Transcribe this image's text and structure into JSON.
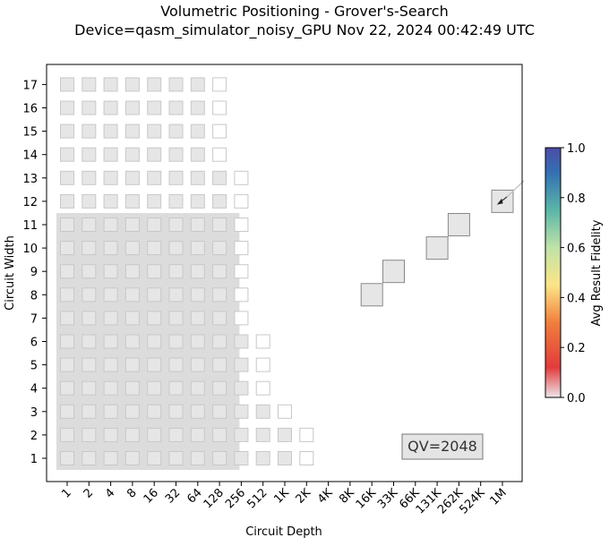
{
  "chart_data": {
    "type": "heatmap",
    "title": "Volumetric Positioning - Grover's-Search",
    "subtitle": "Device=qasm_simulator_noisy_GPU  Nov 22, 2024 00:42:49 UTC",
    "xlabel": "Circuit Depth",
    "ylabel": "Circuit Width",
    "x_ticks": [
      "1",
      "2",
      "4",
      "8",
      "16",
      "32",
      "64",
      "128",
      "256",
      "512",
      "1K",
      "2K",
      "4K",
      "8K",
      "16K",
      "33K",
      "66K",
      "131K",
      "262K",
      "524K",
      "1M"
    ],
    "y_ticks": [
      "1",
      "2",
      "3",
      "4",
      "5",
      "6",
      "7",
      "8",
      "9",
      "10",
      "11",
      "12",
      "13",
      "14",
      "15",
      "16",
      "17"
    ],
    "x_scale": "log2",
    "volume_region": {
      "max_depth_index": 7,
      "max_width": 11,
      "label": ""
    },
    "qv_label": "QV=2048",
    "colorbar": {
      "label": "Avg Result Fidelity",
      "ticks": [
        "0.0",
        "0.2",
        "0.4",
        "0.6",
        "0.8",
        "1.0"
      ],
      "min": 0.0,
      "max": 1.0,
      "colors": [
        "#ede5ea",
        "#e23b3b",
        "#f07f3c",
        "#fce588",
        "#c0e3a8",
        "#5ab6a8",
        "#3470b4",
        "#4b4ca6"
      ]
    },
    "grid_cells": [
      {
        "width": 1,
        "filled_upto": 10,
        "outline_at": 11
      },
      {
        "width": 2,
        "filled_upto": 10,
        "outline_at": 11
      },
      {
        "width": 3,
        "filled_upto": 9,
        "outline_at": 10
      },
      {
        "width": 4,
        "filled_upto": 8,
        "outline_at": 9
      },
      {
        "width": 5,
        "filled_upto": 8,
        "outline_at": 9
      },
      {
        "width": 6,
        "filled_upto": 8,
        "outline_at": 9
      },
      {
        "width": 7,
        "filled_upto": 7,
        "outline_at": 8
      },
      {
        "width": 8,
        "filled_upto": 7,
        "outline_at": 8
      },
      {
        "width": 9,
        "filled_upto": 7,
        "outline_at": 8
      },
      {
        "width": 10,
        "filled_upto": 7,
        "outline_at": 8
      },
      {
        "width": 11,
        "filled_upto": 7,
        "outline_at": 8
      },
      {
        "width": 12,
        "filled_upto": 7,
        "outline_at": 8
      },
      {
        "width": 13,
        "filled_upto": 7,
        "outline_at": 8
      },
      {
        "width": 14,
        "filled_upto": 6,
        "outline_at": 7
      },
      {
        "width": 15,
        "filled_upto": 6,
        "outline_at": 7
      },
      {
        "width": 16,
        "filled_upto": 6,
        "outline_at": 7
      },
      {
        "width": 17,
        "filled_upto": 6,
        "outline_at": 7
      }
    ],
    "result_points": [
      {
        "width": 8,
        "depth": "16K",
        "fidelity": 0.0
      },
      {
        "width": 9,
        "depth": "33K",
        "fidelity": 0.0
      },
      {
        "width": 10,
        "depth": "131K",
        "fidelity": 0.0
      },
      {
        "width": 11,
        "depth": "262K",
        "fidelity": 0.0
      },
      {
        "width": 12,
        "depth": "1M",
        "fidelity": 0.0
      }
    ]
  }
}
